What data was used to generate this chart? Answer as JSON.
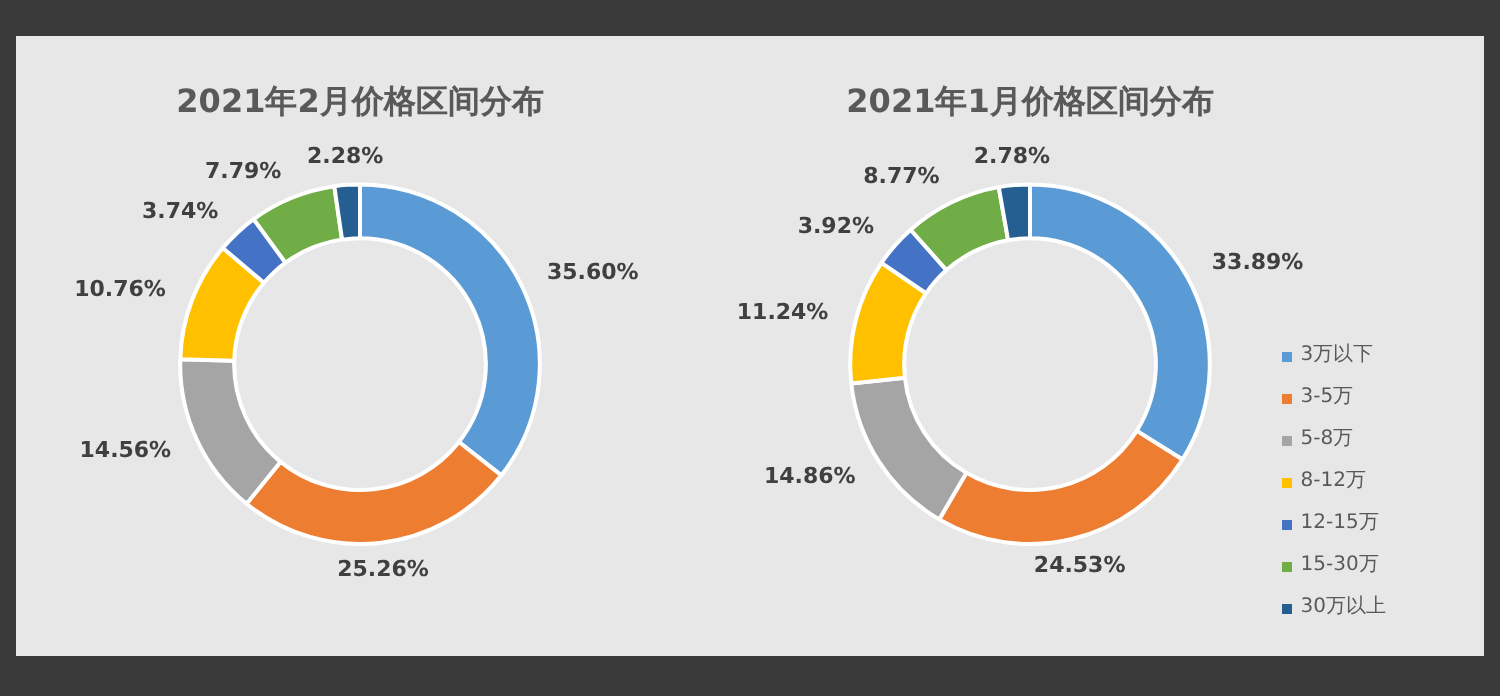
{
  "chart_data": [
    {
      "type": "donut",
      "title": "2021年2月价格区间分布",
      "categories": [
        null,
        null,
        null,
        null,
        null,
        null,
        null
      ],
      "values": [
        35.6,
        25.26,
        14.56,
        10.76,
        3.74,
        7.79,
        2.28
      ],
      "value_labels": [
        "35.60%",
        "25.26%",
        "14.56%",
        "10.76%",
        "3.74%",
        "7.79%",
        "2.28%"
      ],
      "colors": [
        "#5b9bd5",
        "#ed7d31",
        "#a5a5a5",
        "#ffc000",
        "#4472c4",
        "#70ad47",
        "#255e91"
      ],
      "legend": false
    },
    {
      "type": "donut",
      "title": "2021年1月价格区间分布",
      "categories": [
        "3万以下",
        "3-5万",
        "5-8万",
        "8-12万",
        "12-15万",
        "15-30万",
        "30万以上"
      ],
      "values": [
        33.89,
        24.53,
        14.86,
        11.24,
        3.92,
        8.77,
        2.78
      ],
      "value_labels": [
        "33.89%",
        "24.53%",
        "14.86%",
        "11.24%",
        "3.92%",
        "8.77%",
        "2.78%"
      ],
      "colors": [
        "#5b9bd5",
        "#ed7d31",
        "#a5a5a5",
        "#ffc000",
        "#4472c4",
        "#70ad47",
        "#255e91"
      ],
      "legend": "bottom right"
    }
  ]
}
